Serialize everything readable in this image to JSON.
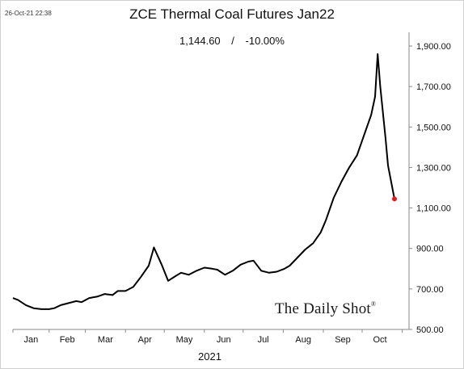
{
  "timestamp": "26-Oct-21 22:38",
  "title": "ZCE Thermal Coal Futures Jan22",
  "subtitle": {
    "value": "1,144.60",
    "separator": "/",
    "change": "-10.00%"
  },
  "watermark": {
    "text": "The Daily Shot",
    "mark": "®"
  },
  "colors": {
    "line": "#000000",
    "last_point": "#e31a1c",
    "background": "#ffffff"
  },
  "chart_data": {
    "type": "line",
    "title": "ZCE Thermal Coal Futures Jan22",
    "xlabel": "2021",
    "ylabel": "",
    "x_tick_labels": [
      "Jan",
      "Feb",
      "Mar",
      "Apr",
      "May",
      "Jun",
      "Jul",
      "Aug",
      "Sep",
      "Oct"
    ],
    "y_tick_labels": [
      "500.00",
      "700.00",
      "900.00",
      "1,100.00",
      "1,300.00",
      "1,500.00",
      "1,700.00",
      "1,900.00"
    ],
    "y_ticks": [
      500,
      700,
      900,
      1100,
      1300,
      1500,
      1700,
      1900
    ],
    "ylim": [
      500,
      1900
    ],
    "xlim": [
      "2021-01-04",
      "2021-10-26"
    ],
    "grid": false,
    "y_axis_side": "right",
    "series": [
      {
        "x": [
          "2021-01-04",
          "2021-01-08",
          "2021-01-14",
          "2021-01-20",
          "2021-01-26",
          "2021-02-01",
          "2021-02-05",
          "2021-02-10",
          "2021-02-22",
          "2021-02-26",
          "2021-03-04",
          "2021-03-10",
          "2021-03-16",
          "2021-03-22",
          "2021-03-26",
          "2021-04-01",
          "2021-04-07",
          "2021-04-13",
          "2021-04-19",
          "2021-04-23",
          "2021-04-29",
          "2021-05-04",
          "2021-05-10",
          "2021-05-14",
          "2021-05-20",
          "2021-05-26",
          "2021-06-01",
          "2021-06-07",
          "2021-06-11",
          "2021-06-17",
          "2021-06-23",
          "2021-06-29",
          "2021-07-05",
          "2021-07-09",
          "2021-07-15",
          "2021-07-21",
          "2021-07-27",
          "2021-08-02",
          "2021-08-06",
          "2021-08-12",
          "2021-08-18",
          "2021-08-24",
          "2021-08-30",
          "2021-09-03",
          "2021-09-09",
          "2021-09-15",
          "2021-09-21",
          "2021-09-27",
          "2021-10-08",
          "2021-10-11",
          "2021-10-13",
          "2021-10-15",
          "2021-10-19",
          "2021-10-21",
          "2021-10-26"
        ],
        "values": [
          655,
          645,
          620,
          605,
          600,
          600,
          605,
          620,
          640,
          635,
          655,
          662,
          675,
          670,
          690,
          690,
          710,
          760,
          815,
          905,
          820,
          740,
          765,
          780,
          770,
          790,
          805,
          800,
          795,
          770,
          790,
          820,
          835,
          840,
          790,
          780,
          785,
          800,
          815,
          855,
          895,
          925,
          980,
          1040,
          1150,
          1230,
          1300,
          1360,
          1560,
          1650,
          1860,
          1700,
          1450,
          1310,
          1144.6
        ]
      }
    ]
  }
}
